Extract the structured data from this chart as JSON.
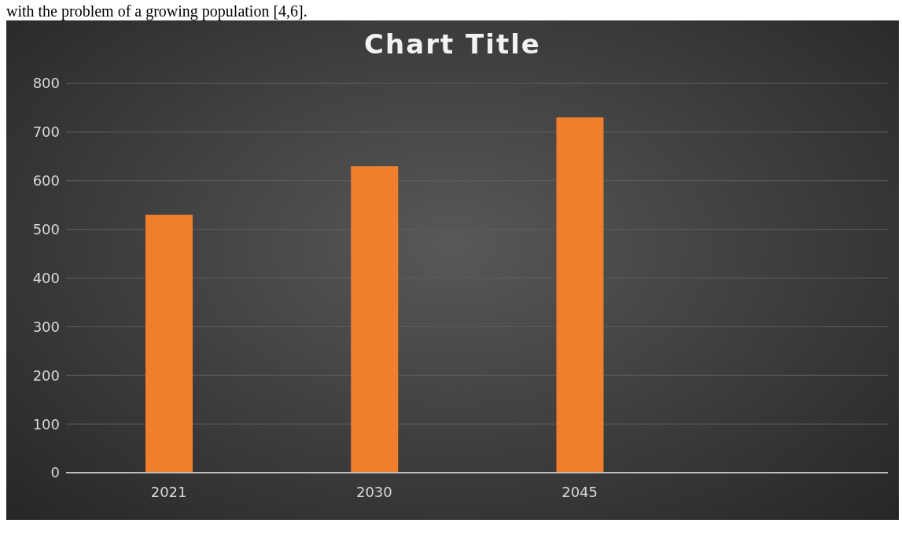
{
  "chart_data": {
    "type": "bar",
    "title": "Chart Title",
    "annotations": [
      "with the problem of a growing population [4,6]."
    ],
    "categories": [
      "2021",
      "2030",
      "2045",
      null
    ],
    "values": [
      530,
      630,
      730,
      null
    ],
    "color": "#f07f2d",
    "ylim": [
      0,
      800
    ],
    "yticks": [
      0,
      100,
      200,
      300,
      400,
      500,
      600,
      700,
      800
    ],
    "grid": "y"
  }
}
